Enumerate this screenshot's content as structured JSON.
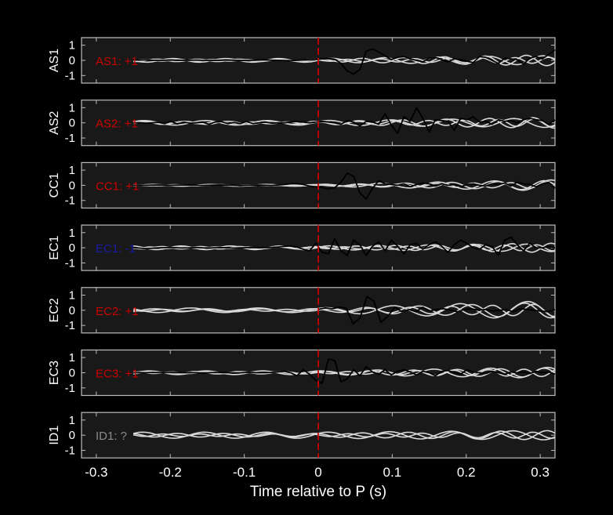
{
  "figure": {
    "background": "#000000",
    "axes_background": "#191919",
    "axes_edge": "#bdbdbd",
    "tick_color": "#ffffff",
    "p_marker_color": "#cc0000",
    "trace_color": "#000000",
    "template_color": "#d9d9d9"
  },
  "chart_data": {
    "type": "line",
    "xlabel": "Time relative to P (s)",
    "xlim": [
      -0.32,
      0.32
    ],
    "xticks": [
      "-0.3",
      "-0.2",
      "-0.1",
      "0",
      "0.1",
      "0.2",
      "0.3"
    ],
    "xtick_values": [
      -0.3,
      -0.2,
      -0.1,
      0,
      0.1,
      0.2,
      0.3
    ],
    "ylim": [
      -1.5,
      1.5
    ],
    "yticks": [
      "1",
      "0",
      "-1"
    ],
    "ytick_values": [
      1,
      0,
      -1
    ],
    "p_arrival_time": 0,
    "panels": [
      {
        "station": "AS1",
        "polarity_label": "AS1: +1",
        "label_color": "#cc0000",
        "trace": {
          "start": -0.25,
          "values": [
            0.02,
            0.02,
            0.03,
            0.01,
            0.0,
            0.01,
            0.02,
            0.01,
            0.0,
            0.01,
            0.02,
            0.0,
            -0.01,
            0.0,
            0.01,
            0.02,
            0.01,
            0.0,
            -0.01,
            0.0,
            0.02,
            0.03,
            0.01,
            0.0,
            -0.01,
            -0.02,
            0.0,
            0.02,
            0.03,
            0.05,
            0.1,
            0.12,
            0.08,
            -0.2,
            -0.7,
            -0.9,
            -0.6,
            0.6,
            0.75,
            0.55,
            0.3,
            0.05,
            0.2,
            0.25,
            0.1,
            0.0,
            -0.1,
            0.15,
            0.2,
            0.05,
            -0.1,
            0.1,
            0.05,
            -0.05,
            -0.15,
            0.25,
            0.2,
            0.0,
            -0.2,
            0.15,
            0.1,
            0.05,
            -0.25,
            0.15,
            0.25,
            0.1,
            0.4,
            0.7
          ]
        },
        "templates": [
          {
            "amp": 0.12,
            "freq": 14,
            "phase": 0.0,
            "late_amp": 0.3
          },
          {
            "amp": 0.08,
            "freq": 18,
            "phase": 1.2,
            "late_amp": 0.35
          },
          {
            "amp": 0.05,
            "freq": 22,
            "phase": 2.5,
            "late_amp": 0.2
          }
        ]
      },
      {
        "station": "AS2",
        "polarity_label": "AS2: +1",
        "label_color": "#cc0000",
        "trace": {
          "start": -0.25,
          "values": [
            0.0,
            0.01,
            -0.02,
            0.0,
            0.03,
            -0.05,
            0.1,
            -0.08,
            0.05,
            -0.02,
            0.0,
            0.05,
            -0.1,
            0.05,
            0.08,
            -0.05,
            0.02,
            -0.05,
            0.1,
            -0.05,
            0.0,
            0.05,
            -0.02,
            0.0,
            0.0,
            0.05,
            0.1,
            0.05,
            0.0,
            0.05,
            0.1,
            0.05,
            0.0,
            -0.1,
            0.15,
            0.05,
            -0.2,
            0.1,
            0.05,
            -0.1,
            0.6,
            -0.15,
            -0.7,
            0.4,
            0.1,
            1.0,
            0.3,
            -0.6,
            0.2,
            0.15,
            0.1,
            -0.5,
            0.3,
            0.2,
            0.4,
            0.05,
            0.1,
            -0.1,
            0.2,
            0.1,
            0.15,
            0.0,
            0.2,
            0.3,
            0.2,
            0.15,
            -0.1,
            0.2
          ]
        },
        "templates": [
          {
            "amp": 0.15,
            "freq": 12,
            "phase": 0.5,
            "late_amp": 0.3
          },
          {
            "amp": 0.1,
            "freq": 17,
            "phase": 2.0,
            "late_amp": 0.35
          },
          {
            "amp": 0.06,
            "freq": 21,
            "phase": 0.8,
            "late_amp": 0.25
          }
        ]
      },
      {
        "station": "CC1",
        "polarity_label": "CC1: +1",
        "label_color": "#cc0000",
        "trace": {
          "start": -0.25,
          "values": [
            0.0,
            0.01,
            0.0,
            0.01,
            0.02,
            0.01,
            0.0,
            0.01,
            0.02,
            0.01,
            0.0,
            -0.01,
            0.0,
            0.01,
            0.02,
            0.01,
            0.0,
            -0.02,
            0.0,
            0.02,
            0.01,
            0.0,
            -0.01,
            0.02,
            0.05,
            0.1,
            0.12,
            0.05,
            -0.05,
            -0.1,
            -0.15,
            -0.25,
            -0.15,
            0.2,
            0.8,
            0.6,
            -0.5,
            -0.9,
            -0.2,
            0.3,
            0.1,
            0.05,
            0.0,
            0.1,
            -0.1,
            0.05,
            0.15,
            0.1,
            -0.05,
            0.1,
            0.0,
            0.05,
            -0.1,
            0.05,
            0.1,
            0.0,
            -0.05,
            0.1,
            0.05,
            0.15,
            -0.05,
            0.2,
            0.1,
            0.05,
            -0.1,
            0.1,
            0.2,
            -0.2
          ]
        },
        "templates": [
          {
            "amp": 0.06,
            "freq": 13,
            "phase": 1.0,
            "late_amp": 0.35
          },
          {
            "amp": 0.04,
            "freq": 16,
            "phase": 2.3,
            "late_amp": 0.3
          },
          {
            "amp": 0.03,
            "freq": 20,
            "phase": 0.3,
            "late_amp": 0.2
          }
        ]
      },
      {
        "station": "EC1",
        "polarity_label": "EC1: -1",
        "label_color": "#1a1aa6",
        "trace": {
          "start": -0.25,
          "values": [
            0.0,
            -0.02,
            -0.05,
            -0.03,
            0.0,
            0.01,
            0.02,
            0.0,
            -0.01,
            0.0,
            0.02,
            0.0,
            -0.01,
            0.0,
            0.01,
            0.0,
            -0.02,
            0.0,
            0.01,
            0.02,
            0.0,
            0.01,
            0.02,
            0.05,
            0.1,
            0.12,
            0.05,
            -0.1,
            -0.2,
            0.3,
            -0.3,
            -0.4,
            0.6,
            -0.2,
            -0.5,
            0.5,
            0.2,
            -0.5,
            0.1,
            0.4,
            -0.2,
            0.5,
            0.1,
            -0.4,
            0.2,
            0.3,
            -0.1,
            0.2,
            0.4,
            0.1,
            -0.3,
            0.2,
            0.5,
            0.3,
            0.0,
            -0.1,
            0.2,
            0.1,
            -0.5,
            0.5,
            0.7,
            0.2,
            -0.2,
            0.3,
            0.0,
            0.0,
            0.1,
            0.0
          ]
        },
        "templates": [
          {
            "amp": 0.12,
            "freq": 15,
            "phase": 0.2,
            "late_amp": 0.25
          },
          {
            "amp": 0.08,
            "freq": 19,
            "phase": 1.7,
            "late_amp": 0.3
          },
          {
            "amp": 0.05,
            "freq": 23,
            "phase": 2.9,
            "late_amp": 0.2
          }
        ]
      },
      {
        "station": "EC2",
        "polarity_label": "EC2: +1",
        "label_color": "#cc0000",
        "trace": {
          "start": 0.0,
          "values": [
            0.05,
            0.15,
            0.1,
            0.2,
            0.15,
            -0.9,
            -0.5,
            0.9,
            0.6,
            -0.8,
            -0.4,
            0.2,
            -0.1,
            0.05,
            -0.1,
            0.2,
            -0.05,
            0.05,
            0.1,
            0.0,
            -0.1,
            0.05,
            0.1,
            0.0,
            0.05,
            -0.05,
            0.0,
            0.05,
            -0.1,
            0.1,
            0.05,
            0.0,
            -0.05,
            -0.1,
            0.05
          ]
        },
        "templates": [
          {
            "amp": 0.15,
            "freq": 11,
            "phase": 0.9,
            "late_amp": 0.6
          },
          {
            "amp": 0.1,
            "freq": 14,
            "phase": 2.2,
            "late_amp": 0.5
          },
          {
            "amp": 0.06,
            "freq": 18,
            "phase": 0.1,
            "late_amp": 0.4
          }
        ]
      },
      {
        "station": "EC3",
        "polarity_label": "EC3: +1",
        "label_color": "#cc0000",
        "trace": {
          "start": -0.25,
          "values": [
            0.0,
            0.01,
            0.0,
            0.02,
            0.01,
            0.0,
            0.02,
            0.01,
            0.0,
            0.01,
            0.0,
            -0.01,
            0.0,
            0.02,
            0.01,
            0.0,
            -0.01,
            0.0,
            0.02,
            0.01,
            0.0,
            0.01,
            0.02,
            0.05,
            0.1,
            0.0,
            -0.2,
            0.2,
            -0.1,
            -0.5,
            -0.7,
            0.9,
            0.8,
            -0.6,
            -0.4,
            0.2,
            -0.2,
            0.4,
            0.05,
            -0.1,
            0.2,
            -0.15,
            0.1,
            0.2,
            0.05,
            -0.15,
            0.1,
            0.0,
            -0.2,
            0.1,
            0.15,
            0.0,
            -0.1,
            0.2,
            0.05,
            0.0,
            -0.05,
            0.1,
            0.0,
            -0.1,
            0.05,
            0.0,
            0.05,
            -0.05,
            0.1,
            0.0,
            0.05,
            -0.1
          ]
        },
        "templates": [
          {
            "amp": 0.12,
            "freq": 13,
            "phase": 1.4,
            "late_amp": 0.35
          },
          {
            "amp": 0.08,
            "freq": 17,
            "phase": 0.4,
            "late_amp": 0.3
          },
          {
            "amp": 0.05,
            "freq": 21,
            "phase": 2.6,
            "late_amp": 0.25
          }
        ]
      },
      {
        "station": "ID1",
        "polarity_label": "ID1: ?",
        "label_color": "#8c8c8c",
        "trace": null,
        "templates": [
          {
            "amp": 0.2,
            "freq": 12,
            "phase": 0.6,
            "late_amp": 0.3
          },
          {
            "amp": 0.12,
            "freq": 16,
            "phase": 1.9,
            "late_amp": 0.3
          },
          {
            "amp": 0.08,
            "freq": 20,
            "phase": 2.8,
            "late_amp": 0.2
          }
        ]
      }
    ]
  }
}
